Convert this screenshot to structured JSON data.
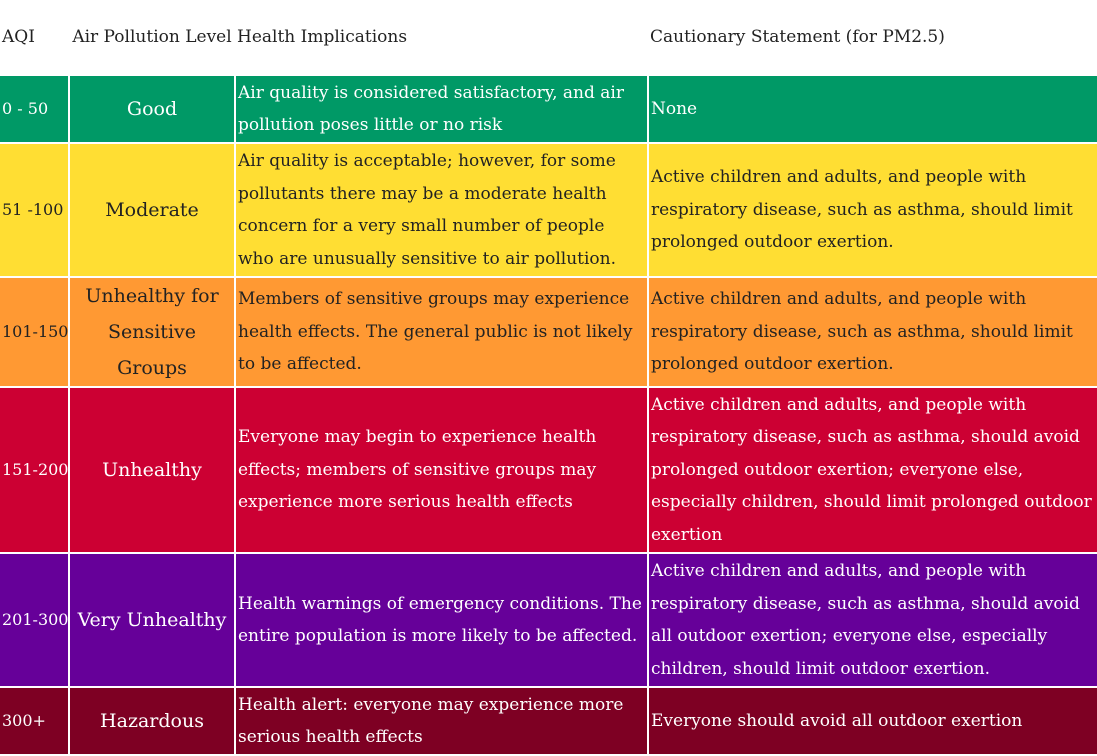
{
  "header": {
    "aqi": "AQI",
    "level": "Air Pollution Level",
    "health": "Health Implications",
    "caution": "Cautionary Statement (for PM2.5)"
  },
  "rows": [
    {
      "range": "0 - 50",
      "level": "Good",
      "health": "Air quality is considered satisfactory, and air pollution poses little or no risk",
      "caution": "None",
      "color": "#009966"
    },
    {
      "range": "51 -100",
      "level": "Moderate",
      "health": "Air quality is acceptable; however, for some pollutants there may be a moderate health concern for a very small number of people who are unusually sensitive to air pollution.",
      "caution": "Active children and adults, and people with respiratory disease, such as asthma, should limit prolonged outdoor exertion.",
      "color": "#ffde33"
    },
    {
      "range": "101-150",
      "level": "Unhealthy for Sensitive Groups",
      "health": "Members of sensitive groups may experience health effects. The general public is not likely to be affected.",
      "caution": "Active children and adults, and people with respiratory disease, such as asthma, should limit prolonged outdoor exertion.",
      "color": "#ff9933"
    },
    {
      "range": "151-200",
      "level": "Unhealthy",
      "health": "Everyone may begin to experience health effects; members of sensitive groups may experience more serious health effects",
      "caution": "Active children and adults, and people with respiratory disease, such as asthma, should avoid prolonged outdoor exertion; everyone else, especially children, should limit prolonged outdoor exertion",
      "color": "#cc0033"
    },
    {
      "range": "201-300",
      "level": "Very Unhealthy",
      "health": "Health warnings of emergency conditions. The entire population is more likely to be affected.",
      "caution": "Active children and adults, and people with respiratory disease, such as asthma, should avoid all outdoor exertion; everyone else, especially children, should limit outdoor exertion.",
      "color": "#660099"
    },
    {
      "range": "300+",
      "level": "Hazardous",
      "health": "Health alert: everyone may experience more serious health effects",
      "caution": "Everyone should avoid all outdoor exertion",
      "color": "#7e0023"
    }
  ]
}
